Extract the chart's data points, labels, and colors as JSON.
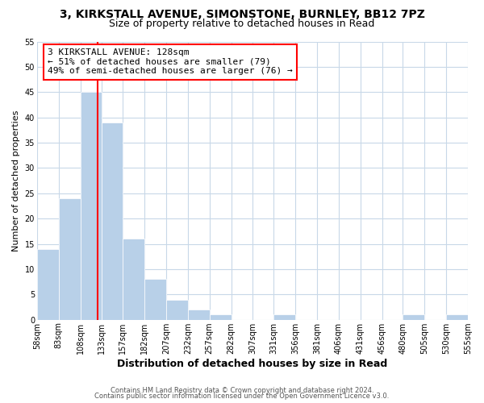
{
  "title": "3, KIRKSTALL AVENUE, SIMONSTONE, BURNLEY, BB12 7PZ",
  "subtitle": "Size of property relative to detached houses in Read",
  "xlabel": "Distribution of detached houses by size in Read",
  "ylabel": "Number of detached properties",
  "bar_left_edges": [
    58,
    83,
    108,
    133,
    157,
    182,
    207,
    232,
    257,
    282,
    307,
    331,
    356,
    381,
    406,
    431,
    456,
    480,
    505,
    530
  ],
  "bar_widths": [
    25,
    25,
    25,
    24,
    25,
    25,
    25,
    25,
    25,
    25,
    24,
    25,
    25,
    25,
    25,
    25,
    24,
    25,
    25,
    25
  ],
  "bar_heights": [
    14,
    24,
    45,
    39,
    16,
    8,
    4,
    2,
    1,
    0,
    0,
    1,
    0,
    0,
    0,
    0,
    0,
    1,
    0,
    1
  ],
  "bar_color": "#b8d0e8",
  "bar_edge_color": "#b8d0e8",
  "grid_color": "#c8d8e8",
  "property_line_x": 128,
  "property_line_color": "red",
  "annotation_line1": "3 KIRKSTALL AVENUE: 128sqm",
  "annotation_line2": "← 51% of detached houses are smaller (79)",
  "annotation_line3": "49% of semi-detached houses are larger (76) →",
  "ylim": [
    0,
    55
  ],
  "yticks": [
    0,
    5,
    10,
    15,
    20,
    25,
    30,
    35,
    40,
    45,
    50,
    55
  ],
  "x_tick_labels": [
    "58sqm",
    "83sqm",
    "108sqm",
    "133sqm",
    "157sqm",
    "182sqm",
    "207sqm",
    "232sqm",
    "257sqm",
    "282sqm",
    "307sqm",
    "331sqm",
    "356sqm",
    "381sqm",
    "406sqm",
    "431sqm",
    "456sqm",
    "480sqm",
    "505sqm",
    "530sqm",
    "555sqm"
  ],
  "x_tick_positions": [
    58,
    83,
    108,
    133,
    157,
    182,
    207,
    232,
    257,
    282,
    307,
    331,
    356,
    381,
    406,
    431,
    456,
    480,
    505,
    530,
    555
  ],
  "footer_line1": "Contains HM Land Registry data © Crown copyright and database right 2024.",
  "footer_line2": "Contains public sector information licensed under the Open Government Licence v3.0.",
  "background_color": "#ffffff",
  "title_fontsize": 10,
  "subtitle_fontsize": 9,
  "ylabel_fontsize": 8,
  "xlabel_fontsize": 9,
  "tick_fontsize": 7,
  "annotation_fontsize": 8,
  "footer_fontsize": 6
}
